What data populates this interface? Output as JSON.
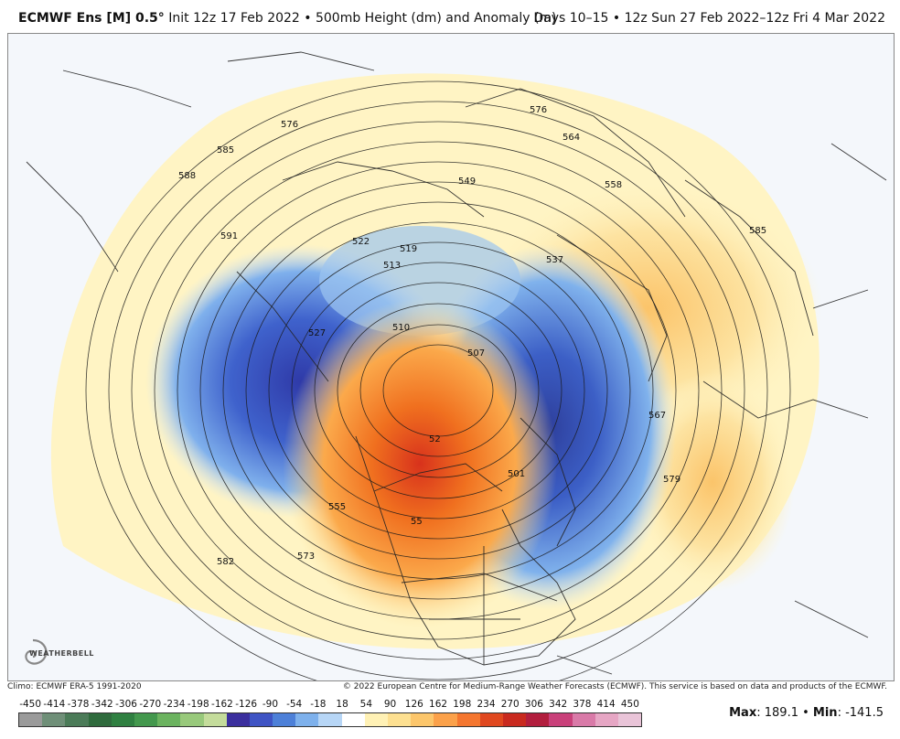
{
  "header": {
    "model": "ECMWF Ens [M] 0.5",
    "degree": "°",
    "description": "Init 12z 17 Feb 2022 • 500mb Height (dm) and Anomaly (m)",
    "valid": "Days 10–15 • 12z Sun 27 Feb 2022–12z Fri 4 Mar 2022"
  },
  "contour_labels": [
    "576",
    "585",
    "588",
    "591",
    "522",
    "519",
    "513",
    "510",
    "507",
    "527",
    "573",
    "555",
    "582",
    "564",
    "558",
    "549",
    "537",
    "567",
    "579",
    "501",
    "52",
    "55"
  ],
  "logo": {
    "text": "WEATHERBELL"
  },
  "credits": {
    "climo": "Climo: ECMWF ERA-5 1991-2020",
    "copyright": "© 2022 European Centre for Medium-Range Weather Forecasts (ECMWF). This service is based on data and products of the ECMWF."
  },
  "colorbar": {
    "ticks": [
      "-450",
      "-414",
      "-378",
      "-342",
      "-306",
      "-270",
      "-234",
      "-198",
      "-162",
      "-126",
      "-90",
      "-54",
      "-18",
      "18",
      "54",
      "90",
      "126",
      "162",
      "198",
      "234",
      "270",
      "306",
      "342",
      "378",
      "414",
      "450"
    ],
    "colors": [
      "#9a9a9a",
      "#6f8f78",
      "#4b7b58",
      "#2f6b3d",
      "#2f8041",
      "#43984d",
      "#6bb35f",
      "#98c97b",
      "#c4dc9b",
      "#3b2f9e",
      "#3f54c4",
      "#4d80d8",
      "#7eb1ec",
      "#b7d6f6",
      "#ffffff",
      "#fff1b5",
      "#fde091",
      "#fcc66b",
      "#fba14a",
      "#f4762f",
      "#e0481f",
      "#c92a1f",
      "#b21e3e",
      "#c9407a",
      "#d97aa8",
      "#e6a6c4",
      "#e9c4d8"
    ]
  },
  "stats": {
    "max_label": "Max",
    "max_value": "189.1",
    "min_label": "Min",
    "min_value": "-141.5"
  }
}
